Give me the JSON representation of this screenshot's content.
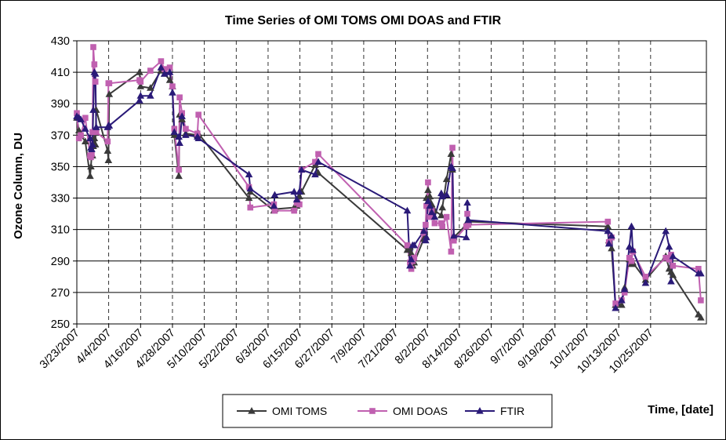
{
  "chart_data": {
    "type": "line",
    "title": "Time Series of OMI TOMS OMI DOAS and FTIR",
    "xlabel": "Time, [date]",
    "ylabel": "Ozone Column, DU",
    "ylim": [
      250,
      430
    ],
    "yticks": [
      250,
      270,
      290,
      310,
      330,
      350,
      370,
      390,
      410,
      430
    ],
    "x_start": "3/23/2007",
    "xticks": [
      "3/23/2007",
      "4/4/2007",
      "4/16/2007",
      "4/28/2007",
      "5/10/2007",
      "5/22/2007",
      "6/3/2007",
      "6/15/2007",
      "6/27/2007",
      "7/9/2007",
      "7/21/2007",
      "8/2/2007",
      "8/14/2007",
      "8/26/2007",
      "9/7/2007",
      "9/19/2007",
      "10/1/2007",
      "10/13/2007",
      "10/25/2007"
    ],
    "xtick_days": [
      0,
      12,
      24,
      36,
      48,
      60,
      72,
      84,
      96,
      108,
      120,
      132,
      144,
      156,
      168,
      180,
      192,
      204,
      216
    ],
    "xlim_days": [
      0,
      237
    ],
    "grid": true,
    "legend_position": "bottom",
    "colors": {
      "OMI TOMS": "#3a3a3a",
      "OMI DOAS": "#c060b0",
      "FTIR": "#2a1a78"
    },
    "series": [
      {
        "name": "OMI TOMS",
        "marker": "triangle",
        "x": [
          0,
          0.8,
          1.5,
          3.2,
          5.0,
          5.3,
          5.6,
          5.9,
          6.2,
          6.6,
          7.0,
          7.3,
          11.6,
          11.9,
          12.2,
          23.6,
          24.0,
          27.7,
          31.7,
          33.0,
          35.0,
          36.0,
          36.7,
          38.4,
          38.7,
          39.6,
          41.0,
          45.4,
          45.8,
          64.8,
          65.3,
          74.2,
          74.5,
          81.8,
          82.8,
          83.8,
          84.6,
          89.7,
          90.9,
          124.4,
          125.4,
          125.9,
          126.4,
          127.0,
          130.6,
          131.3,
          131.6,
          132.2,
          132.9,
          133.6,
          134.7,
          137.2,
          137.6,
          139.2,
          140.9,
          141.4,
          141.9,
          146.6,
          147.0,
          147.4,
          199.9,
          200.3,
          201.3,
          202.8,
          205.1,
          206.2,
          208.0,
          208.8,
          209.3,
          214.1,
          221.7,
          223.0,
          223.7,
          224.4,
          234.0,
          234.9
        ],
        "y": [
          381,
          373,
          370,
          366,
          344,
          350,
          358,
          357,
          363,
          368,
          364,
          386,
          360,
          354,
          396,
          410,
          401,
          400,
          411,
          409,
          405,
          401,
          370,
          344,
          383,
          380,
          371,
          370,
          371,
          330,
          334,
          322,
          323,
          324,
          325,
          331,
          334,
          351,
          346,
          297,
          299,
          295,
          287,
          289,
          304,
          306,
          330,
          335,
          331,
          326,
          322,
          319,
          324,
          342,
          358,
          348,
          305,
          313,
          315,
          315,
          312,
          303,
          298,
          262,
          262,
          273,
          291,
          288,
          289,
          278,
          293,
          285,
          283,
          281,
          256,
          254
        ]
      },
      {
        "name": "OMI DOAS",
        "marker": "square",
        "x": [
          0,
          0.8,
          1.5,
          3.2,
          5.0,
          5.3,
          5.6,
          5.9,
          6.2,
          6.6,
          7.0,
          7.3,
          11.6,
          11.9,
          12.2,
          23.6,
          24.0,
          27.7,
          31.7,
          33.0,
          35.0,
          36.0,
          36.7,
          38.4,
          38.7,
          39.6,
          41.0,
          45.4,
          45.8,
          64.8,
          65.3,
          74.2,
          74.5,
          81.8,
          82.8,
          83.8,
          84.6,
          89.7,
          90.9,
          124.4,
          125.4,
          125.9,
          126.4,
          127.0,
          130.6,
          131.3,
          131.6,
          132.2,
          132.9,
          133.6,
          134.7,
          137.2,
          137.6,
          139.2,
          140.9,
          141.4,
          141.9,
          146.6,
          147.0,
          147.4,
          199.9,
          200.3,
          201.3,
          202.8,
          205.1,
          206.2,
          208.0,
          208.8,
          209.3,
          214.1,
          221.7,
          223.0,
          223.7,
          224.4,
          234.0,
          234.9
        ],
        "y": [
          384,
          368,
          370,
          381,
          357,
          356,
          358,
          372,
          426,
          415,
          404,
          372,
          366,
          403,
          403,
          405,
          404,
          411,
          417,
          412,
          413,
          401,
          374,
          348,
          394,
          384,
          374,
          371,
          383,
          337,
          324,
          326,
          322,
          322,
          327,
          326,
          348,
          353,
          358,
          300,
          289,
          285,
          290,
          292,
          308,
          313,
          325,
          340,
          318,
          322,
          314,
          314,
          312,
          318,
          296,
          362,
          303,
          312,
          320,
          313,
          315,
          302,
          305,
          263,
          265,
          270,
          292,
          290,
          296,
          280,
          292,
          291,
          294,
          287,
          285,
          265
        ]
      },
      {
        "name": "FTIR",
        "marker": "triangle",
        "x": [
          0,
          0.8,
          1.5,
          3.2,
          5.0,
          5.3,
          5.6,
          5.9,
          6.2,
          6.6,
          7.0,
          7.3,
          11.6,
          11.9,
          12.2,
          23.6,
          24.0,
          27.7,
          31.7,
          33.0,
          35.0,
          36.0,
          36.7,
          38.4,
          38.7,
          39.6,
          41.0,
          45.4,
          45.8,
          64.8,
          65.3,
          74.2,
          74.5,
          81.8,
          82.8,
          83.8,
          84.6,
          89.7,
          90.9,
          124.4,
          125.4,
          125.9,
          126.4,
          127.0,
          130.6,
          131.3,
          131.6,
          132.2,
          132.9,
          133.6,
          134.7,
          137.2,
          137.6,
          139.2,
          140.9,
          141.4,
          141.9,
          146.6,
          147.0,
          147.4,
          199.9,
          200.3,
          201.3,
          202.8,
          205.1,
          206.2,
          208.0,
          208.8,
          209.3,
          214.1,
          221.7,
          223.0,
          223.7,
          224.4,
          234.0,
          234.9
        ],
        "y": [
          382,
          381,
          380,
          374,
          368,
          362,
          361,
          364,
          386,
          410,
          409,
          375,
          375,
          376,
          376,
          392,
          395,
          395,
          413,
          409,
          410,
          397,
          372,
          369,
          365,
          382,
          370,
          369,
          368,
          345,
          336,
          325,
          332,
          334,
          329,
          334,
          348,
          345,
          353,
          322,
          287,
          291,
          300,
          300,
          309,
          303,
          305,
          328,
          325,
          321,
          318,
          333,
          331,
          332,
          350,
          349,
          306,
          305,
          327,
          316,
          309,
          301,
          306,
          260,
          265,
          272,
          299,
          312,
          297,
          276,
          309,
          299,
          277,
          293,
          282,
          282
        ]
      }
    ]
  }
}
